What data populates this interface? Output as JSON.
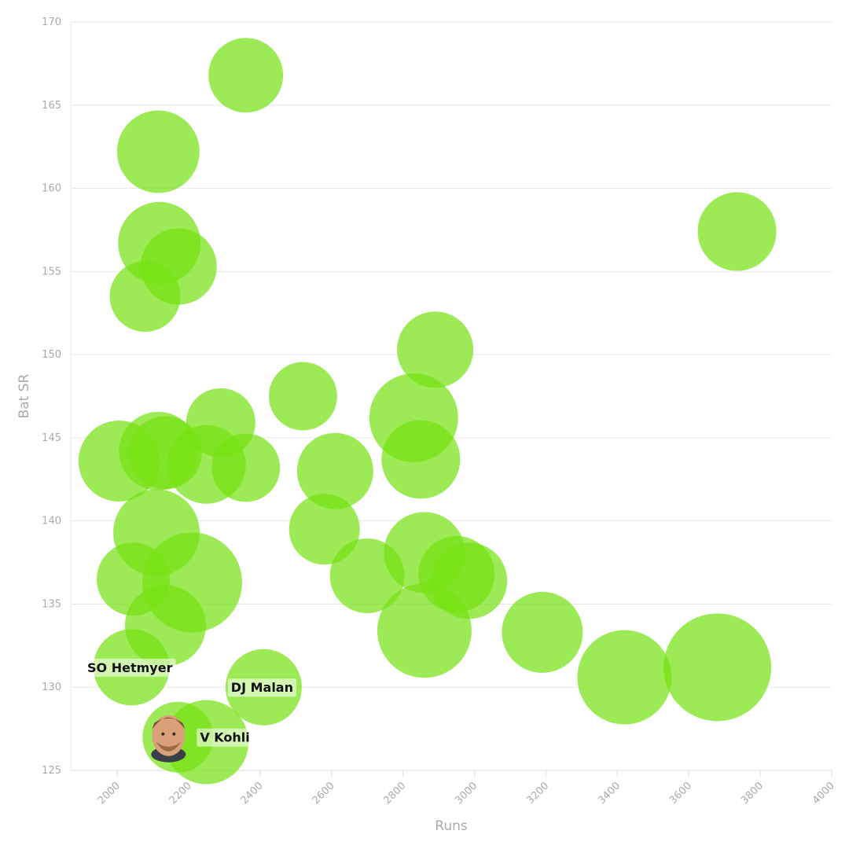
{
  "chart_data": {
    "type": "scatter",
    "variant": "bubble",
    "title": "",
    "xlabel": "Runs",
    "ylabel": "Bat SR",
    "xlim": [
      1870,
      4000
    ],
    "ylim": [
      125,
      170
    ],
    "xticks": [
      2000,
      2200,
      2400,
      2600,
      2800,
      3000,
      3200,
      3400,
      3600,
      3800,
      4000
    ],
    "yticks": [
      125,
      130,
      135,
      140,
      145,
      150,
      155,
      160,
      165,
      170
    ],
    "grid": true,
    "bubble_color": "#76e214",
    "points": [
      {
        "x": 2360,
        "y": 166.8,
        "size": 95,
        "label": ""
      },
      {
        "x": 2115,
        "y": 162.2,
        "size": 105,
        "label": ""
      },
      {
        "x": 2118,
        "y": 156.7,
        "size": 105,
        "label": ""
      },
      {
        "x": 2172,
        "y": 155.3,
        "size": 97,
        "label": ""
      },
      {
        "x": 2078,
        "y": 153.5,
        "size": 90,
        "label": ""
      },
      {
        "x": 3735,
        "y": 157.4,
        "size": 100,
        "label": ""
      },
      {
        "x": 2890,
        "y": 150.3,
        "size": 97,
        "label": ""
      },
      {
        "x": 2520,
        "y": 147.5,
        "size": 87,
        "label": ""
      },
      {
        "x": 2830,
        "y": 146.2,
        "size": 113,
        "label": ""
      },
      {
        "x": 2290,
        "y": 145.9,
        "size": 88,
        "label": ""
      },
      {
        "x": 2850,
        "y": 143.7,
        "size": 100,
        "label": ""
      },
      {
        "x": 2005,
        "y": 143.6,
        "size": 103,
        "label": ""
      },
      {
        "x": 2115,
        "y": 144.2,
        "size": 100,
        "label": ""
      },
      {
        "x": 2135,
        "y": 144.1,
        "size": 93,
        "label": ""
      },
      {
        "x": 2250,
        "y": 143.4,
        "size": 100,
        "label": ""
      },
      {
        "x": 2360,
        "y": 143.2,
        "size": 87,
        "label": ""
      },
      {
        "x": 2610,
        "y": 143.0,
        "size": 97,
        "label": ""
      },
      {
        "x": 2580,
        "y": 139.5,
        "size": 90,
        "label": ""
      },
      {
        "x": 2110,
        "y": 139.3,
        "size": 110,
        "label": ""
      },
      {
        "x": 2045,
        "y": 136.5,
        "size": 93,
        "label": ""
      },
      {
        "x": 2210,
        "y": 136.3,
        "size": 127,
        "label": ""
      },
      {
        "x": 2700,
        "y": 136.7,
        "size": 95,
        "label": ""
      },
      {
        "x": 2860,
        "y": 138.1,
        "size": 103,
        "label": ""
      },
      {
        "x": 2950,
        "y": 136.8,
        "size": 97,
        "label": ""
      },
      {
        "x": 2985,
        "y": 136.4,
        "size": 97,
        "label": ""
      },
      {
        "x": 2135,
        "y": 133.7,
        "size": 103,
        "label": ""
      },
      {
        "x": 2860,
        "y": 133.4,
        "size": 120,
        "label": ""
      },
      {
        "x": 3190,
        "y": 133.3,
        "size": 103,
        "label": ""
      },
      {
        "x": 3420,
        "y": 130.6,
        "size": 120,
        "label": ""
      },
      {
        "x": 3680,
        "y": 131.2,
        "size": 137,
        "label": ""
      },
      {
        "x": 2040,
        "y": 131.2,
        "size": 97,
        "label": "SO Hetmyer"
      },
      {
        "x": 2410,
        "y": 130.0,
        "size": 97,
        "label": "DJ Malan"
      },
      {
        "x": 2250,
        "y": 126.7,
        "size": 107,
        "label": ""
      },
      {
        "x": 2170,
        "y": 127.0,
        "size": 90,
        "label": "V Kohli",
        "avatar": true
      }
    ]
  }
}
